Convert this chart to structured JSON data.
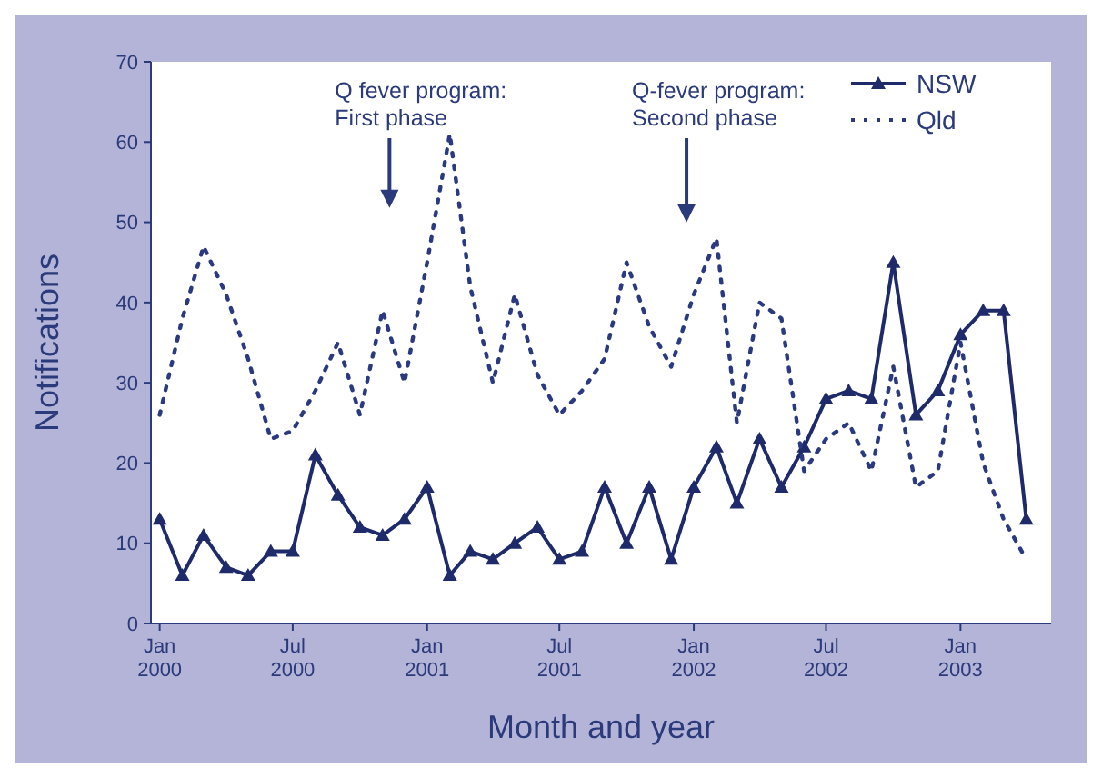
{
  "chart_data": {
    "type": "line",
    "xlabel": "Month and year",
    "ylabel": "Notifications",
    "x": [
      "2000-01",
      "2000-02",
      "2000-03",
      "2000-04",
      "2000-05",
      "2000-06",
      "2000-07",
      "2000-08",
      "2000-09",
      "2000-10",
      "2000-11",
      "2000-12",
      "2001-01",
      "2001-02",
      "2001-03",
      "2001-04",
      "2001-05",
      "2001-06",
      "2001-07",
      "2001-08",
      "2001-09",
      "2001-10",
      "2001-11",
      "2001-12",
      "2002-01",
      "2002-02",
      "2002-03",
      "2002-04",
      "2002-05",
      "2002-06",
      "2002-07",
      "2002-08",
      "2002-09",
      "2002-10",
      "2002-11",
      "2002-12",
      "2003-01",
      "2003-02",
      "2003-03",
      "2003-04"
    ],
    "series": [
      {
        "name": "NSW",
        "color": "#1f2a6b",
        "marker": "triangle",
        "line_style": "solid",
        "values": [
          13,
          6,
          11,
          7,
          6,
          9,
          9,
          21,
          16,
          12,
          11,
          13,
          17,
          6,
          9,
          8,
          10,
          12,
          8,
          9,
          17,
          10,
          17,
          8,
          17,
          22,
          15,
          23,
          17,
          22,
          28,
          29,
          28,
          45,
          26,
          29,
          36,
          39,
          39,
          13
        ]
      },
      {
        "name": "Qld",
        "color": "#2b3a80",
        "marker": "none",
        "line_style": "dotted",
        "values": [
          26,
          38,
          47,
          41,
          33,
          23,
          24,
          29,
          35,
          26,
          39,
          30,
          45,
          61,
          42,
          30,
          41,
          31,
          26,
          29,
          33,
          45,
          37,
          32,
          41,
          48,
          25,
          40,
          38,
          19,
          23,
          25,
          19,
          32,
          17,
          19,
          35,
          20,
          13,
          8
        ]
      }
    ],
    "xlim": [
      "1999-12-20",
      "2003-05-05"
    ],
    "xticks": [
      {
        "value": "2000-01",
        "label": "Jan 2000"
      },
      {
        "value": "2000-07",
        "label": "Jul 2000"
      },
      {
        "value": "2001-01",
        "label": "Jan 2001"
      },
      {
        "value": "2001-07",
        "label": "Jul 2001"
      },
      {
        "value": "2002-01",
        "label": "Jan 2002"
      },
      {
        "value": "2002-07",
        "label": "Jul 2002"
      },
      {
        "value": "2003-01",
        "label": "Jan 2003"
      }
    ],
    "ylim": [
      0,
      70
    ],
    "yticks": [
      0,
      10,
      20,
      30,
      40,
      50,
      60,
      70
    ],
    "grid": false,
    "legend": "top right",
    "annotations": [
      "Q fever program:\nFirst phase",
      "Q-fever program:\nSecond phase"
    ]
  }
}
